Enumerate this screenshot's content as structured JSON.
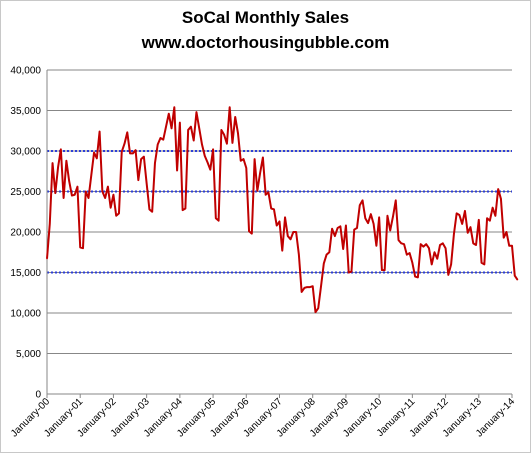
{
  "chart_data": {
    "type": "line",
    "title": "SoCal Monthly Sales",
    "subtitle": "www.doctorhousingubble.com",
    "ylim": [
      0,
      40000
    ],
    "y_ticks": [
      "0",
      "5,000",
      "10,000",
      "15,000",
      "20,000",
      "25,000",
      "30,000",
      "35,000",
      "40,000"
    ],
    "x_ticks": [
      "January-00",
      "January-01",
      "January-02",
      "January-03",
      "January-04",
      "January-05",
      "January-06",
      "January-07",
      "January-08",
      "January-09",
      "January-10",
      "January-11",
      "January-12",
      "January-13",
      "January-14"
    ],
    "reference_lines": [
      15000,
      25000,
      30000
    ],
    "reference_line_color": "#2e3fd8",
    "series_color": "#c00000",
    "grid": "horizontal",
    "series": [
      {
        "values": [
          16700,
          21000,
          28500,
          24800,
          28000,
          30200,
          24200,
          28800,
          26300,
          24500,
          24600,
          25600,
          18100,
          18000,
          25000,
          24200,
          27000,
          29800,
          29100,
          32400,
          25000,
          24200,
          25600,
          23000,
          24600,
          22000,
          22300,
          29900,
          30900,
          32300,
          29700,
          29700,
          30100,
          26400,
          29000,
          29300,
          26000,
          22800,
          22500,
          28500,
          30800,
          31600,
          31400,
          33000,
          34600,
          32800,
          35400,
          27600,
          33500,
          22700,
          22900,
          32600,
          33000,
          31300,
          34800,
          32800,
          30800,
          29400,
          28600,
          27700,
          30200,
          21700,
          21400,
          32600,
          32000,
          30900,
          35400,
          31000,
          34200,
          32200,
          28800,
          29000,
          27900,
          20100,
          19800,
          29000,
          25100,
          27300,
          29200,
          24600,
          24900,
          22900,
          22800,
          20800,
          21300,
          17700,
          21800,
          19500,
          19100,
          20000,
          20000,
          17200,
          12600,
          13100,
          13200,
          13200,
          13300,
          10100,
          10600,
          13300,
          16100,
          17200,
          17500,
          20400,
          19500,
          20500,
          20700,
          17900,
          20800,
          15000,
          15100,
          20300,
          20500,
          23300,
          23900,
          21700,
          21100,
          22200,
          21000,
          18300,
          21800,
          15300,
          15300,
          22000,
          20200,
          21900,
          23900,
          19000,
          18600,
          18500,
          17200,
          17400,
          16200,
          14500,
          14400,
          18500,
          18200,
          18500,
          18000,
          16000,
          17500,
          16700,
          18400,
          18600,
          18000,
          14700,
          16000,
          19700,
          22300,
          22100,
          21000,
          22600,
          19900,
          20600,
          18600,
          18400,
          21500,
          16200,
          16000,
          21700,
          21400,
          23000,
          22000,
          25300,
          24100,
          19300,
          20000,
          18300,
          18300,
          14600,
          14100
        ]
      }
    ]
  }
}
